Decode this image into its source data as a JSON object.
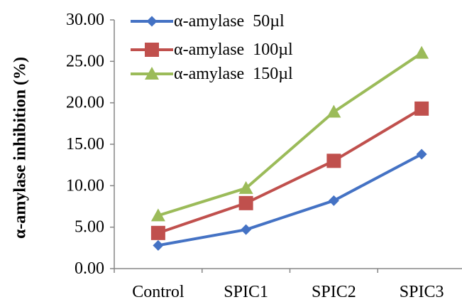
{
  "chart_data": {
    "type": "line",
    "title": "",
    "xlabel": "",
    "ylabel": "α-amylase inhibition (%)",
    "categories": [
      "Control",
      "SPIC1",
      "SPIC2",
      "SPIC3"
    ],
    "ylim": [
      0,
      30
    ],
    "yticks": [
      "0.00",
      "5.00",
      "10.00",
      "15.00",
      "20.00",
      "25.00",
      "30.00"
    ],
    "grid": false,
    "legend_position": "top-left",
    "series": [
      {
        "name": "α-amylase  50µl",
        "color": "#4472C4",
        "marker": "diamond",
        "values": [
          2.8,
          4.7,
          8.2,
          13.8
        ]
      },
      {
        "name": "α-amylase  100µl",
        "color": "#C0504D",
        "marker": "square",
        "values": [
          4.3,
          7.9,
          13.0,
          19.3
        ]
      },
      {
        "name": "α-amylase  150µl",
        "color": "#9BBB59",
        "marker": "triangle",
        "values": [
          6.4,
          9.7,
          18.9,
          26.0
        ]
      }
    ]
  }
}
